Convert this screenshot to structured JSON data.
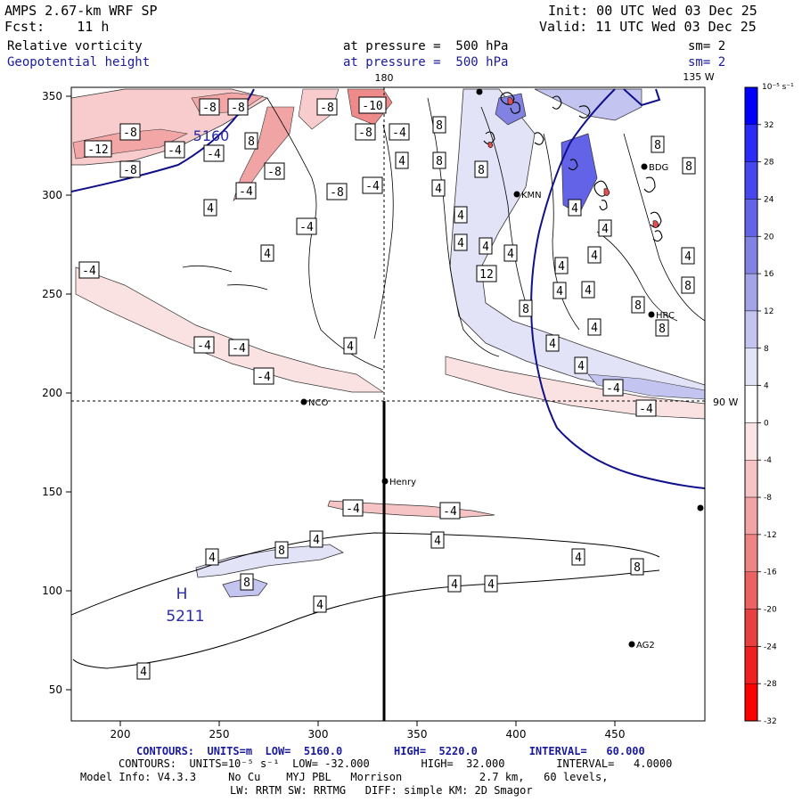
{
  "header": {
    "model": "AMPS 2.67-km WRF SP",
    "fcst": "Fcst:    11 h",
    "init": "Init: 00 UTC Wed 03 Dec 25",
    "valid": "Valid: 11 UTC Wed 03 Dec 25",
    "field1": "Relative vorticity",
    "field2": "Geopotential height",
    "pressure1": "at pressure =  500 hPa",
    "pressure2": "at pressure =  500 hPa",
    "sm1": "sm= 2",
    "sm2": "sm= 2"
  },
  "map_labels": {
    "lon_180": "180",
    "lon_135w": "135 W",
    "lon_90w": "90 W",
    "high_letter": "H",
    "high_value": "5211",
    "height_5160": "5160"
  },
  "stations": [
    {
      "name": "NCO"
    },
    {
      "name": "Henry"
    },
    {
      "name": "HRC"
    },
    {
      "name": "BDG"
    },
    {
      "name": "KMN"
    },
    {
      "name": "AG2"
    }
  ],
  "axes": {
    "x_ticks": [
      "200",
      "250",
      "300",
      "350",
      "400",
      "450"
    ],
    "y_ticks": [
      "350",
      "300",
      "250",
      "200",
      "150",
      "100",
      "50"
    ]
  },
  "contour_labels": [
    "-8",
    "-8",
    "-8",
    "-10",
    "-12",
    "-8",
    "-8",
    "-4",
    "-8",
    "-4",
    "-4",
    "-8",
    "-8",
    "-4",
    "-4",
    "-4",
    "-4",
    "-4",
    "-4",
    "-4",
    "-4",
    "-4",
    "-4",
    "-4",
    "8",
    "4",
    "4",
    "4",
    "4",
    "4",
    "4",
    "4",
    "4",
    "8",
    "8",
    "8",
    "8",
    "8",
    "8",
    "8",
    "8",
    "8",
    "4",
    "4",
    "4",
    "4",
    "4",
    "4",
    "4",
    "4",
    "4",
    "12",
    "4",
    "4",
    "4",
    "8",
    "4",
    "4",
    "4",
    "8",
    "8",
    "4",
    "4",
    "4",
    "4",
    "4"
  ],
  "colorbar": {
    "unit": "10⁻⁵ s⁻¹",
    "labels": [
      "32",
      "28",
      "24",
      "20",
      "16",
      "12",
      "8",
      "4",
      "0",
      "-4",
      "-8",
      "-12",
      "-16",
      "-20",
      "-24",
      "-28",
      "-32"
    ],
    "colors": [
      "#0000ff",
      "#2b2bf5",
      "#4747ee",
      "#6363e8",
      "#8282e2",
      "#a3a3e8",
      "#c4c4f0",
      "#e3e3f8",
      "#ffffff",
      "#fbe4e4",
      "#f6c4c4",
      "#f2a4a4",
      "#ee8484",
      "#ea6262",
      "#e84040",
      "#f02020",
      "#ff0000"
    ]
  },
  "footer": {
    "contours1": "CONTOURS:  UNITS=m  LOW=  5160.0        HIGH=  5220.0        INTERVAL=   60.000",
    "contours2": "CONTOURS:  UNITS=10⁻⁵ s⁻¹  LOW= -32.000        HIGH=  32.000        INTERVAL=   4.0000",
    "model_info": "Model Info: V4.3.3     No Cu    MYJ PBL   Morrison            2.7 km,   60 levels,",
    "model_info2": "LW: RRTM SW: RRTMG   DIFF: simple KM: 2D Smagor"
  }
}
